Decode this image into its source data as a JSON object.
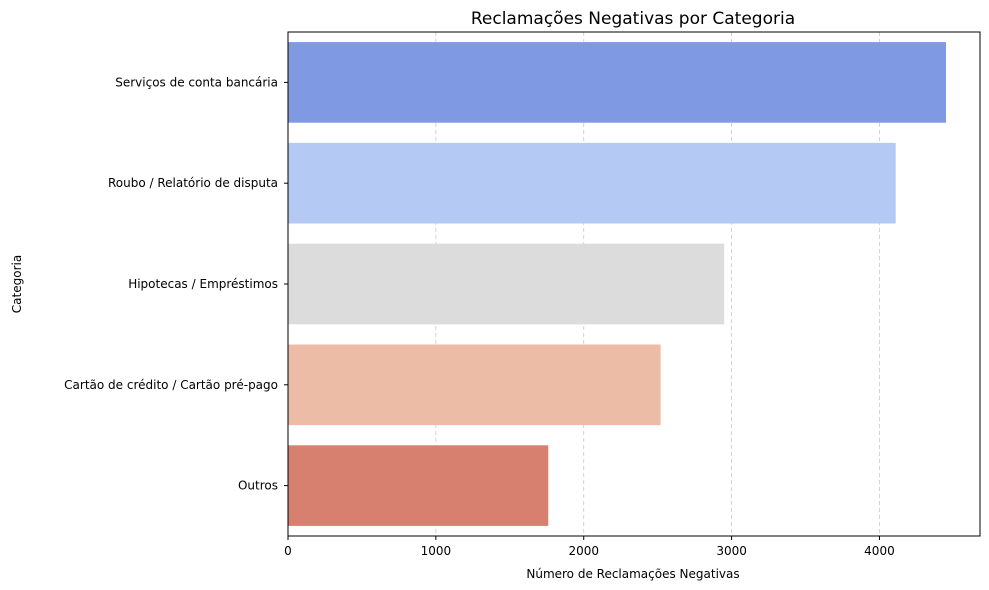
{
  "chart_data": {
    "type": "bar",
    "orientation": "horizontal",
    "title": "Reclamações Negativas por Categoria",
    "xlabel": "Número de Reclamações Negativas",
    "ylabel": "Categoria",
    "categories": [
      "Serviços de conta bancária",
      "Roubo / Relatório de disputa",
      "Hipotecas / Empréstimos",
      "Cartão de crédito / Cartão pré-pago",
      "Outros"
    ],
    "values": [
      4450,
      4110,
      2950,
      2520,
      1760
    ],
    "colors": [
      "#7f9ae3",
      "#b4c9f3",
      "#dcdcdc",
      "#ecbca6",
      "#d88070"
    ],
    "xlim": [
      0,
      4680
    ],
    "xticks": [
      0,
      1000,
      2000,
      3000,
      4000
    ],
    "xtick_labels": [
      "0",
      "1000",
      "2000",
      "3000",
      "4000"
    ],
    "grid": "x-dashed",
    "legend": "none"
  }
}
